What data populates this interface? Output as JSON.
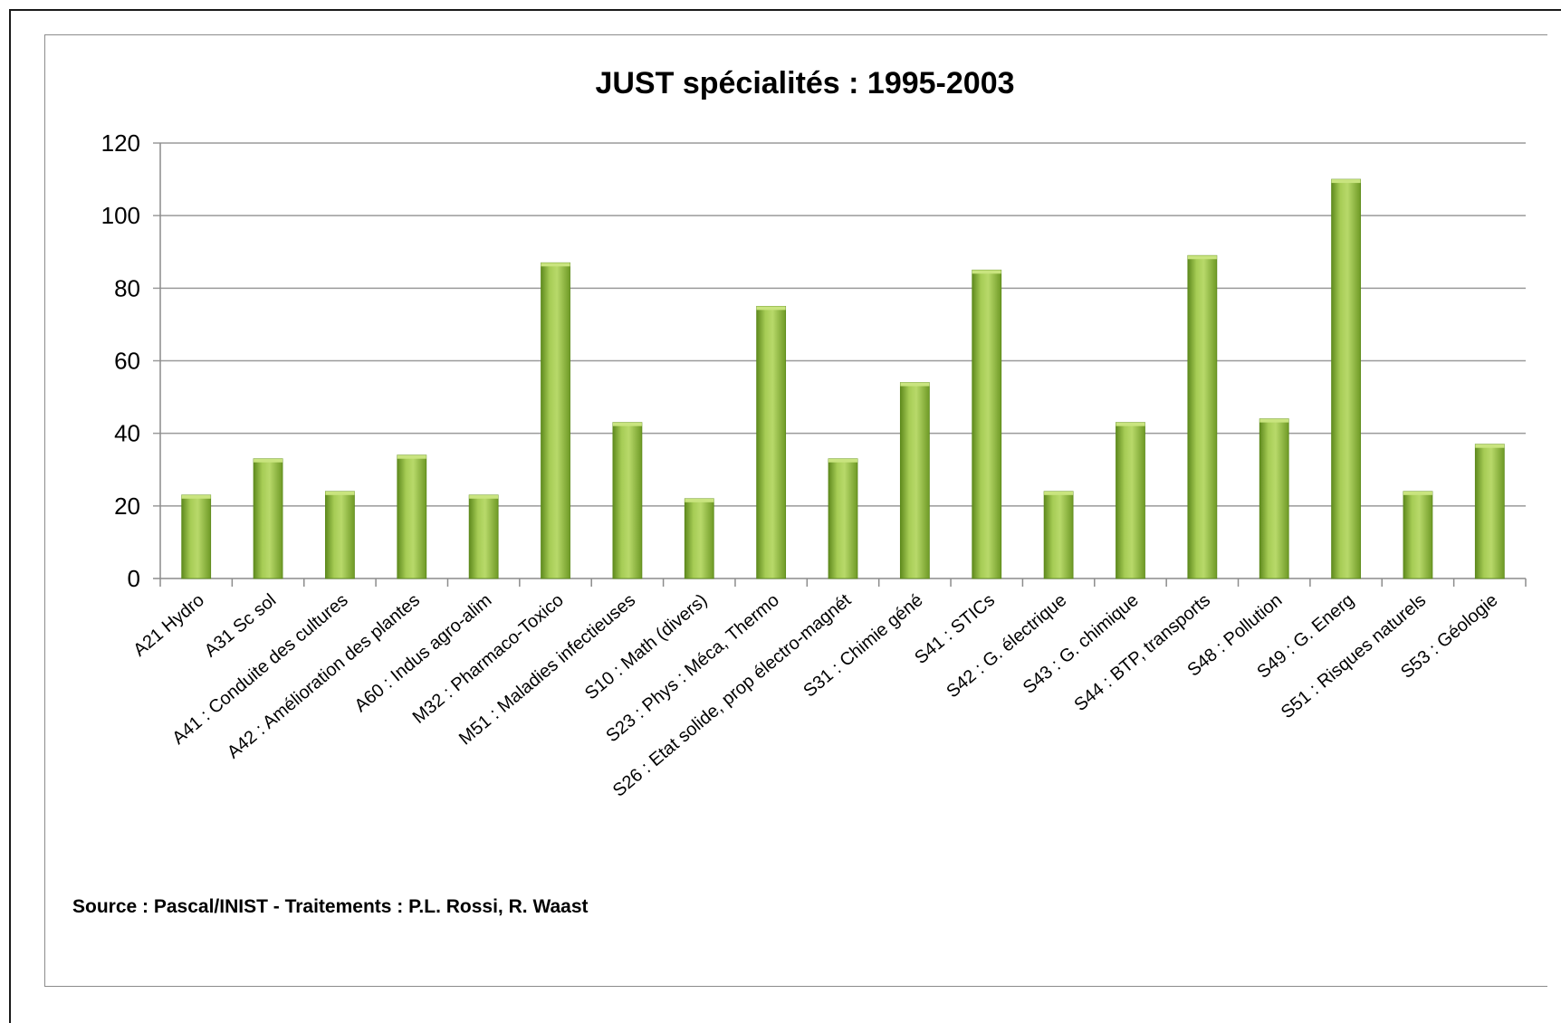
{
  "chart_data": {
    "type": "bar",
    "title": "JUST spécialités : 1995-2003",
    "xlabel": "",
    "ylabel": "",
    "ylim": [
      0,
      120
    ],
    "yticks": [
      0,
      20,
      40,
      60,
      80,
      100,
      120
    ],
    "grid": true,
    "legend": "none",
    "bar_color": "#8db43a",
    "categories": [
      "A21 Hydro",
      "A31 Sc sol",
      "A41 : Conduite des cultures",
      "A42 : Amélioration des plantes",
      "A60 : Indus agro-alim",
      "M32 : Pharmaco-Toxico",
      "M51 : Maladies infectieuses",
      "S10 : Math (divers)",
      "S23 : Phys : Méca, Thermo",
      "S26 : Etat solide, prop électro-magnét",
      "S31 : Chimie géné",
      "S41 : STICs",
      "S42 : G. électrique",
      "S43 : G. chimique",
      "S44 : BTP, transports",
      "S48 : Pollution",
      "S49 : G. Energ",
      "S51 : Risques naturels",
      "S53 : Géologie"
    ],
    "values": [
      23,
      33,
      24,
      34,
      23,
      87,
      43,
      22,
      75,
      33,
      54,
      85,
      24,
      43,
      89,
      44,
      110,
      24,
      37
    ]
  },
  "source_note": "Source : Pascal/INIST - Traitements : P.L. Rossi, R. Waast"
}
